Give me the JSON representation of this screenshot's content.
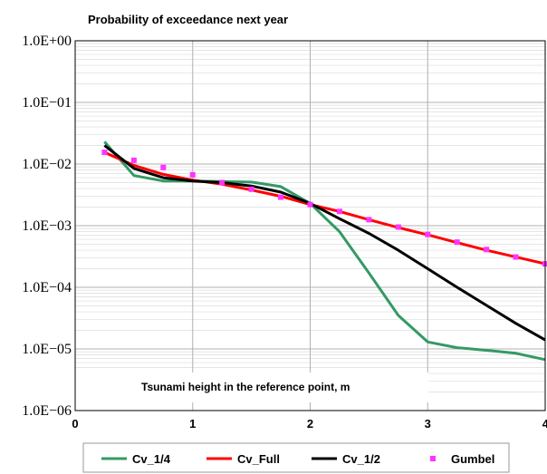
{
  "chart_data": {
    "type": "line",
    "title": "Probability of exceedance next year",
    "xlabel": "Tsunami height in the reference point, m",
    "ylabel": "",
    "xlim": [
      0,
      4
    ],
    "ylim": [
      1e-06,
      1
    ],
    "y_scale": "log",
    "x_ticks": [
      "0",
      "1",
      "2",
      "3",
      "4"
    ],
    "y_ticks": [
      "1.0E+00",
      "1.0E−01",
      "1.0E−02",
      "1.0E−03",
      "1.0E−04",
      "1.0E−05",
      "1.0E−06"
    ],
    "grid": true,
    "legend_position": "bottom",
    "series": [
      {
        "name": "Cv_1/4",
        "color": "#339966",
        "style": "line",
        "x": [
          0.25,
          0.5,
          0.75,
          1.0,
          1.25,
          1.5,
          1.75,
          2.0,
          2.25,
          2.5,
          2.75,
          3.0,
          3.25,
          3.5,
          3.75,
          4.0
        ],
        "y": [
          0.023,
          0.0065,
          0.0053,
          0.0053,
          0.0052,
          0.0051,
          0.0043,
          0.0023,
          0.0008,
          0.00017,
          3.5e-05,
          1.3e-05,
          1.05e-05,
          9.5e-06,
          8.5e-06,
          6.7e-06
        ]
      },
      {
        "name": "Cv_Full",
        "color": "#ff0000",
        "style": "line",
        "x": [
          0.25,
          0.5,
          0.75,
          1.0,
          1.25,
          1.5,
          1.75,
          2.0,
          2.25,
          2.5,
          2.75,
          3.0,
          3.25,
          3.5,
          3.75,
          4.0
        ],
        "y": [
          0.0155,
          0.0095,
          0.0068,
          0.0055,
          0.0047,
          0.0038,
          0.003,
          0.0022,
          0.0017,
          0.00125,
          0.00093,
          0.00071,
          0.00053,
          0.0004,
          0.00031,
          0.00024
        ]
      },
      {
        "name": "Cv_1/2",
        "color": "#000000",
        "style": "line",
        "x": [
          0.25,
          0.5,
          0.75,
          1.0,
          1.25,
          1.5,
          1.75,
          2.0,
          2.25,
          2.5,
          2.75,
          3.0,
          3.25,
          3.5,
          3.75,
          4.0
        ],
        "y": [
          0.02,
          0.0085,
          0.006,
          0.0053,
          0.005,
          0.0044,
          0.0035,
          0.0023,
          0.0013,
          0.00075,
          0.0004,
          0.0002,
          0.0001,
          5.1e-05,
          2.6e-05,
          1.4e-05
        ]
      },
      {
        "name": "Gumbel",
        "color": "#ff33ff",
        "style": "markers",
        "x": [
          0.25,
          0.5,
          0.75,
          1.0,
          1.25,
          1.5,
          1.75,
          2.0,
          2.25,
          2.5,
          2.75,
          3.0,
          3.25,
          3.5,
          3.75,
          4.0
        ],
        "y": [
          0.0155,
          0.0115,
          0.0088,
          0.0067,
          0.005,
          0.0039,
          0.0029,
          0.0022,
          0.0017,
          0.00125,
          0.00095,
          0.00072,
          0.00054,
          0.00041,
          0.00031,
          0.00024
        ]
      }
    ]
  }
}
